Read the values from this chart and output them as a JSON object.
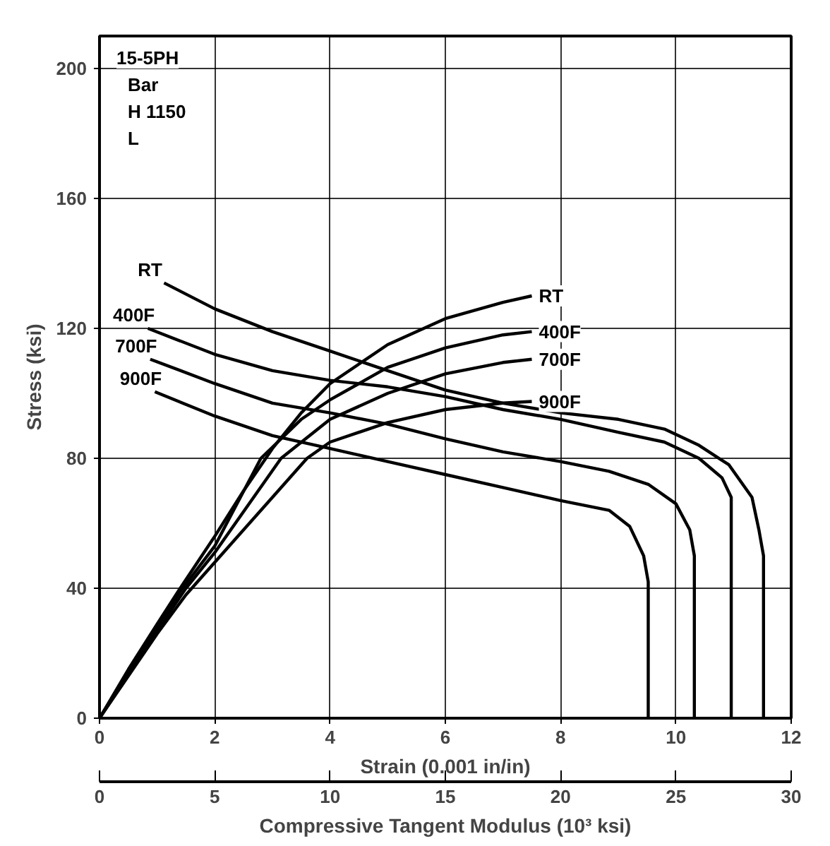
{
  "chart_data": {
    "type": "line",
    "xlabel": "Strain (0.001 in/in)",
    "ylabel": "Stress (ksi)",
    "x2label": "Compressive Tangent Modulus (10³ ksi)",
    "xlim": [
      0,
      12
    ],
    "xticks": [
      0,
      2,
      4,
      6,
      8,
      10,
      12
    ],
    "ylim": [
      0,
      210
    ],
    "yticks": [
      0,
      40,
      80,
      120,
      160,
      200
    ],
    "x2lim": [
      0,
      30
    ],
    "x2ticks": [
      0,
      5,
      10,
      15,
      20,
      25,
      30
    ],
    "grid": true,
    "marker": "none",
    "line_style": "solid",
    "series": [
      {
        "name": "RT",
        "color": "#000000",
        "x": [
          0,
          0.5,
          1,
          1.4,
          2,
          2.5,
          3,
          3.5,
          4,
          5,
          6,
          7,
          7.5
        ],
        "values": [
          0,
          15,
          29,
          40,
          56,
          70,
          83,
          94,
          103,
          115,
          123,
          128,
          130
        ]
      },
      {
        "name": "400F",
        "color": "#000000",
        "x": [
          0,
          1,
          1.4,
          2,
          2.8,
          3.5,
          4,
          5,
          6,
          7,
          7.5
        ],
        "values": [
          0,
          28,
          39,
          53,
          80,
          92,
          98,
          108,
          114,
          118,
          119
        ]
      },
      {
        "name": "700F",
        "color": "#000000",
        "x": [
          0,
          1,
          1.5,
          2,
          3.15,
          4,
          5,
          6,
          7,
          7.5
        ],
        "values": [
          0,
          27,
          40,
          51,
          80,
          92,
          100,
          106,
          109.5,
          110.5
        ]
      },
      {
        "name": "900F",
        "color": "#000000",
        "x": [
          0,
          1,
          1.5,
          2,
          3,
          3.6,
          4,
          5,
          6,
          7,
          7.5
        ],
        "values": [
          0,
          26,
          38,
          48,
          68,
          80,
          85,
          91,
          95,
          97,
          97.5
        ]
      },
      {
        "name": "RT",
        "color": "#000000",
        "axis": "x2",
        "x": [
          2.8,
          5,
          7.5,
          10,
          12.5,
          15,
          17.5,
          20,
          22.5,
          24.5,
          26,
          27.3,
          28.3,
          28.6,
          28.8,
          28.8
        ],
        "values": [
          134,
          126,
          119,
          113,
          107,
          101,
          97,
          94,
          92,
          89,
          84,
          78,
          68,
          58,
          50,
          0
        ]
      },
      {
        "name": "400F",
        "color": "#000000",
        "axis": "x2",
        "x": [
          2.1,
          5,
          7.5,
          10,
          12.5,
          15,
          17.5,
          20,
          22.5,
          24.5,
          26,
          27,
          27.4,
          27.4
        ],
        "values": [
          120,
          112,
          107,
          104,
          102,
          99,
          95,
          92,
          88,
          85,
          80,
          74,
          68,
          0
        ]
      },
      {
        "name": "700F",
        "color": "#000000",
        "axis": "x2",
        "x": [
          2.2,
          5,
          7.5,
          10,
          12.5,
          15,
          17.5,
          20,
          22.1,
          23.8,
          25,
          25.6,
          25.8,
          25.8
        ],
        "values": [
          110.5,
          103,
          97,
          94,
          90.5,
          86,
          82,
          79,
          76,
          72,
          66,
          58,
          50,
          0
        ]
      },
      {
        "name": "900F",
        "color": "#000000",
        "axis": "x2",
        "x": [
          2.4,
          5,
          7.5,
          10,
          12.5,
          15,
          17.5,
          20,
          22.1,
          23,
          23.6,
          23.8,
          23.8
        ],
        "values": [
          100.5,
          93,
          87,
          83,
          79,
          75,
          71,
          67,
          64,
          59,
          50,
          42,
          0
        ]
      }
    ],
    "annotations": [
      "15-5PH\nBar\nH 1150\nL"
    ]
  }
}
